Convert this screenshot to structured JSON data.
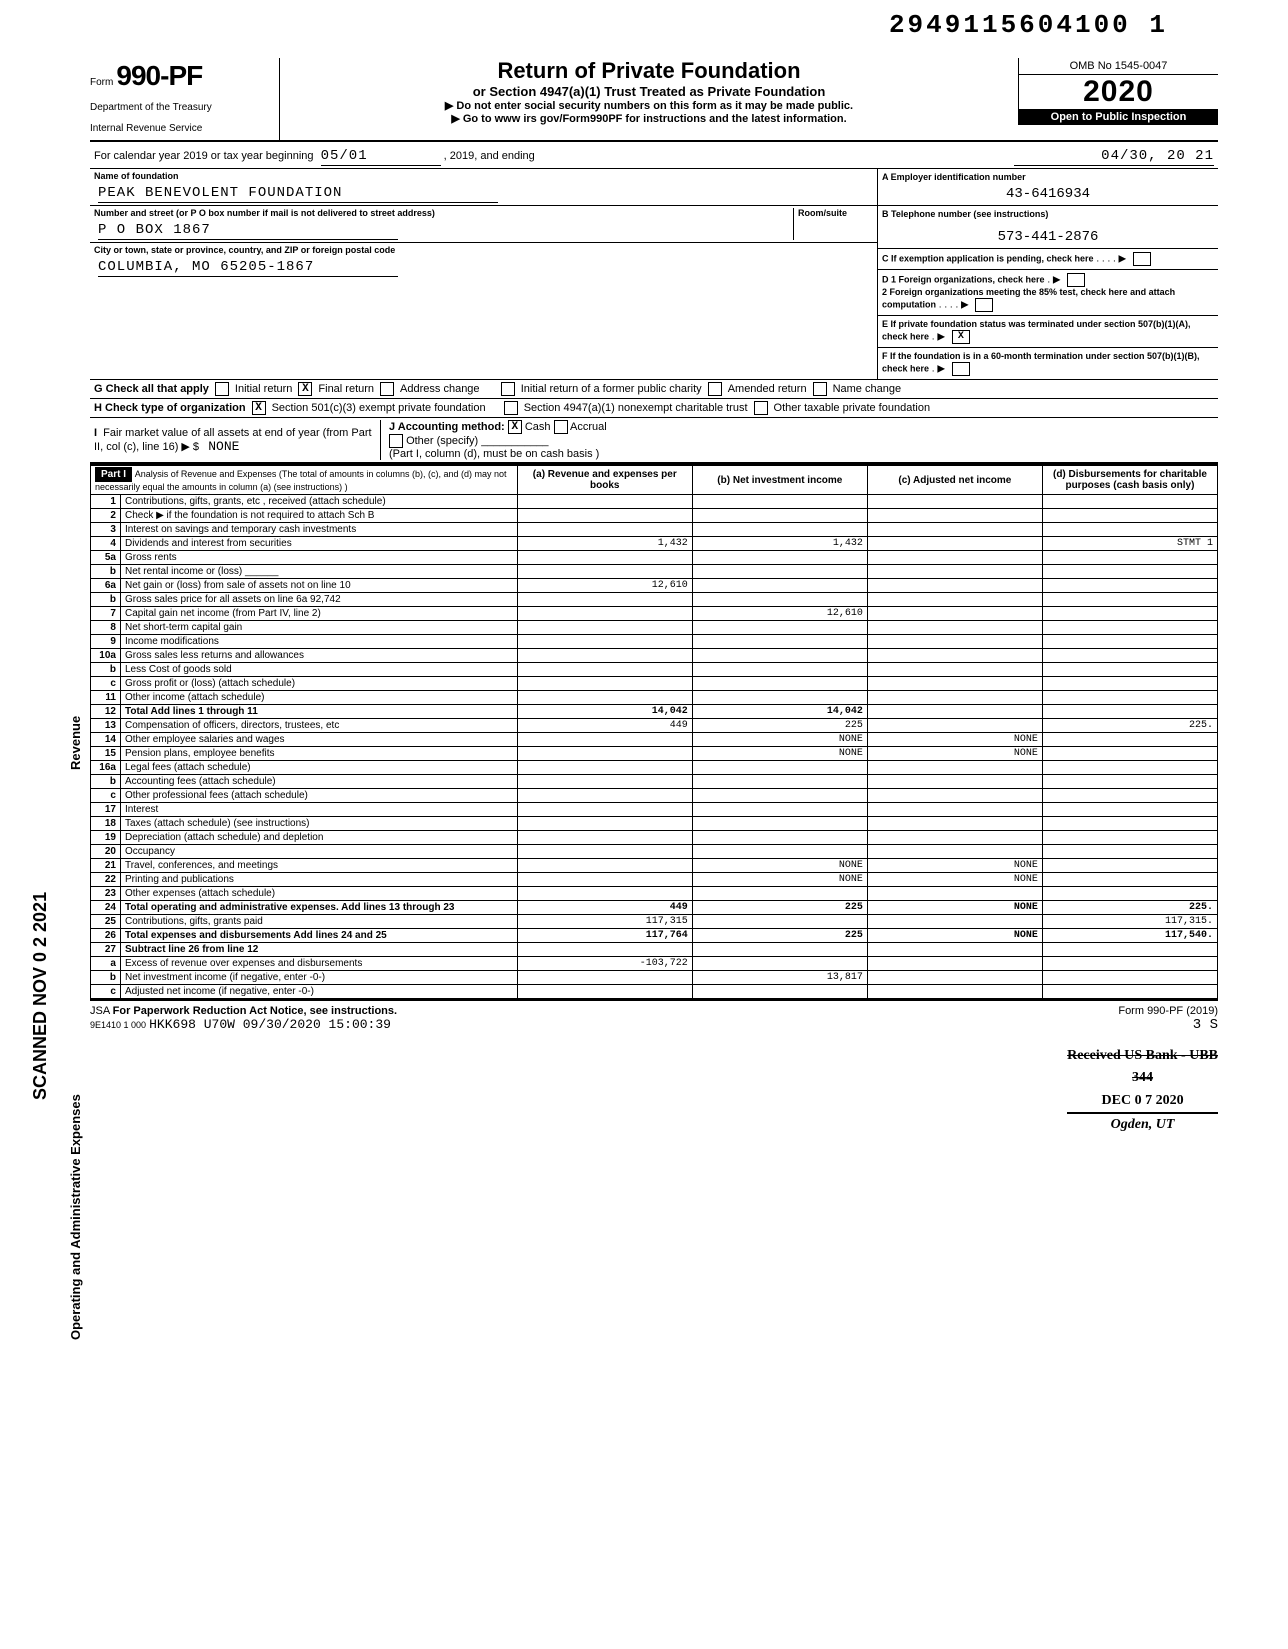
{
  "barcode": "2949115604100 1",
  "form": {
    "prefix": "Form",
    "number": "990-PF",
    "dept1": "Department of the Treasury",
    "dept2": "Internal Revenue Service"
  },
  "title": {
    "main": "Return of Private Foundation",
    "sub": "or Section 4947(a)(1) Trust Treated as Private Foundation",
    "l1": "▶ Do not enter social security numbers on this form as it may be made public.",
    "l2": "▶ Go to www irs gov/Form990PF for instructions and the latest information."
  },
  "yearcol": {
    "omb": "OMB No 1545-0047",
    "year": "2020",
    "inspect": "Open to Public Inspection"
  },
  "taxyear": {
    "label": "For calendar year 2019 or tax year beginning",
    "begin": "05/01",
    "mid": ", 2019, and ending",
    "end": "04/30, 20 21"
  },
  "name": {
    "label": "Name of foundation",
    "value": "PEAK BENEVOLENT FOUNDATION"
  },
  "addr": {
    "label": "Number and street (or P O box number if mail is not delivered to street address)",
    "room": "Room/suite",
    "value": "P O BOX 1867"
  },
  "city": {
    "label": "City or town, state or province, country, and ZIP or foreign postal code",
    "value": "COLUMBIA, MO 65205-1867"
  },
  "A": {
    "label": "A  Employer identification number",
    "value": "43-6416934"
  },
  "B": {
    "label": "B  Telephone number (see instructions)",
    "value": "573-441-2876"
  },
  "C": {
    "label": "C  If exemption application is pending, check here"
  },
  "D": {
    "d1": "D 1  Foreign organizations, check here",
    "d2": "2  Foreign organizations meeting the 85% test, check here and attach computation"
  },
  "E": {
    "label": "E  If private foundation status was terminated under section 507(b)(1)(A), check here",
    "checked": "X"
  },
  "F": {
    "label": "F  If the foundation is in a 60-month termination under section 507(b)(1)(B), check here"
  },
  "G": {
    "label": "G  Check all that apply",
    "opts": [
      "Initial return",
      "Final return",
      "Address change",
      "Initial return of a former public charity",
      "Amended return",
      "Name change"
    ],
    "final_x": "X"
  },
  "H": {
    "label": "H  Check type of organization",
    "opt1": "Section 501(c)(3) exempt private foundation",
    "opt1x": "X",
    "opt2": "Section 4947(a)(1) nonexempt charitable trust",
    "opt3": "Other taxable private foundation"
  },
  "I": {
    "label": "I  Fair market value of all assets at end of year (from Part II, col (c), line 16) ▶ $",
    "value": "NONE",
    "J": "J Accounting method:",
    "Jcash": "X",
    "Jcashlabel": "Cash",
    "Jacc": "Accrual",
    "Jother": "Other (specify)",
    "Jnote": "(Part I, column (d), must be on cash basis )"
  },
  "part1": {
    "title": "Part I",
    "desc": "Analysis of Revenue and Expenses (The total of amounts in columns (b), (c), and (d) may not necessarily equal the amounts in column (a) (see instructions) )",
    "cols": [
      "(a) Revenue and expenses per books",
      "(b) Net investment income",
      "(c) Adjusted net income",
      "(d) Disbursements for charitable purposes (cash basis only)"
    ]
  },
  "rows": [
    {
      "n": "1",
      "label": "Contributions, gifts, grants, etc , received (attach schedule)"
    },
    {
      "n": "2",
      "label": "Check ▶        if the foundation is not required to attach Sch B"
    },
    {
      "n": "3",
      "label": "Interest on savings and temporary cash investments"
    },
    {
      "n": "4",
      "label": "Dividends and interest from securities",
      "a": "1,432",
      "b": "1,432",
      "d": "STMT 1"
    },
    {
      "n": "5a",
      "label": "Gross rents"
    },
    {
      "n": "b",
      "label": "Net rental income or (loss) ______"
    },
    {
      "n": "6a",
      "label": "Net gain or (loss) from sale of assets not on line 10",
      "a": "12,610"
    },
    {
      "n": "b",
      "label": "Gross sales price for all assets on line 6a      92,742"
    },
    {
      "n": "7",
      "label": "Capital gain net income (from Part IV, line 2)",
      "b": "12,610"
    },
    {
      "n": "8",
      "label": "Net short-term capital gain"
    },
    {
      "n": "9",
      "label": "Income modifications"
    },
    {
      "n": "10a",
      "label": "Gross sales less returns and allowances"
    },
    {
      "n": "b",
      "label": "Less Cost of goods sold"
    },
    {
      "n": "c",
      "label": "Gross profit or (loss) (attach schedule)"
    },
    {
      "n": "11",
      "label": "Other income (attach schedule)"
    },
    {
      "n": "12",
      "label": "Total Add lines 1 through 11",
      "a": "14,042",
      "b": "14,042",
      "bold": true
    },
    {
      "n": "13",
      "label": "Compensation of officers, directors, trustees, etc",
      "a": "449",
      "b": "225",
      "d": "225."
    },
    {
      "n": "14",
      "label": "Other employee salaries and wages",
      "b": "NONE",
      "c": "NONE"
    },
    {
      "n": "15",
      "label": "Pension plans, employee benefits",
      "b": "NONE",
      "c": "NONE"
    },
    {
      "n": "16a",
      "label": "Legal fees (attach schedule)"
    },
    {
      "n": "b",
      "label": "Accounting fees (attach schedule)"
    },
    {
      "n": "c",
      "label": "Other professional fees (attach schedule)"
    },
    {
      "n": "17",
      "label": "Interest"
    },
    {
      "n": "18",
      "label": "Taxes (attach schedule) (see instructions)"
    },
    {
      "n": "19",
      "label": "Depreciation (attach schedule) and depletion"
    },
    {
      "n": "20",
      "label": "Occupancy"
    },
    {
      "n": "21",
      "label": "Travel, conferences, and meetings",
      "b": "NONE",
      "c": "NONE"
    },
    {
      "n": "22",
      "label": "Printing and publications",
      "b": "NONE",
      "c": "NONE"
    },
    {
      "n": "23",
      "label": "Other expenses (attach schedule)"
    },
    {
      "n": "24",
      "label": "Total operating and administrative expenses. Add lines 13 through 23",
      "a": "449",
      "b": "225",
      "c": "NONE",
      "d": "225.",
      "bold": true
    },
    {
      "n": "25",
      "label": "Contributions, gifts, grants paid",
      "a": "117,315",
      "d": "117,315."
    },
    {
      "n": "26",
      "label": "Total expenses and disbursements Add lines 24 and 25",
      "a": "117,764",
      "b": "225",
      "c": "NONE",
      "d": "117,540.",
      "bold": true
    },
    {
      "n": "27",
      "label": "Subtract line 26 from line 12",
      "bold": true
    },
    {
      "n": "a",
      "label": "Excess of revenue over expenses and disbursements",
      "a": "-103,722"
    },
    {
      "n": "b",
      "label": "Net investment income (if negative, enter -0-)",
      "b": "13,817"
    },
    {
      "n": "c",
      "label": "Adjusted net income (if negative, enter -0-)"
    }
  ],
  "footer": {
    "jsa": "JSA",
    "pra": "For Paperwork Reduction Act Notice, see instructions.",
    "code": "9E1410 1 000",
    "stamp": "HKK698 U70W 09/30/2020 15:00:39",
    "formref": "Form 990-PF (2019)",
    "pg": "3      S"
  },
  "scan": "SCANNED NOV 0 2 2021",
  "sideRev": "Revenue",
  "sideOp": "Operating and Administrative Expenses",
  "irsstamp": {
    "l1": "Received US Bank - UBB",
    "l1strike": true,
    "l2": "344",
    "l3": "DEC 0 7 2020",
    "l4": "Ogden, UT"
  }
}
